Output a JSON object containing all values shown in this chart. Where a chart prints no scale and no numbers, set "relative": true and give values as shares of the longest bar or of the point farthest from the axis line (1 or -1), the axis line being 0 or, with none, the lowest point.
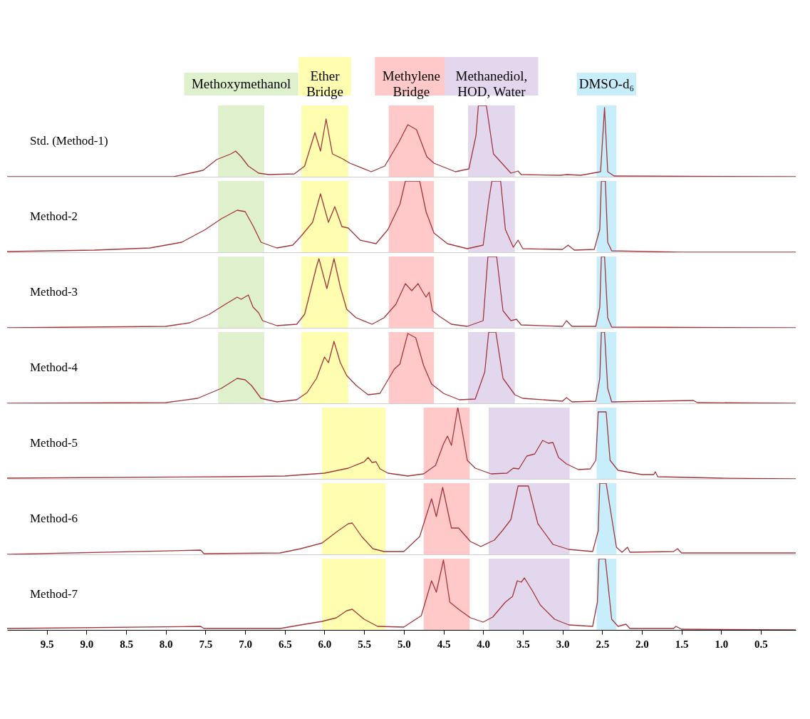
{
  "chart_data": [
    {
      "type": "line",
      "relative": true,
      "tick_labels": false,
      "xlim": [
        10.0,
        0.06
      ],
      "x": [
        10.0,
        7.9,
        7.53,
        7.36,
        7.18,
        7.12,
        7.05,
        6.96,
        6.83,
        6.7,
        6.38,
        6.25,
        6.12,
        6.05,
        5.98,
        5.9,
        5.77,
        5.68,
        5.41,
        5.24,
        5.06,
        4.95,
        4.84,
        4.71,
        4.62,
        4.35,
        4.18,
        4.09,
        4.06,
        3.96,
        3.87,
        3.65,
        3.56,
        3.52,
        3.03,
        2.94,
        2.77,
        2.52,
        2.47,
        2.43,
        2.35,
        0.06
      ],
      "series": [
        {
          "name": "Std. (Method-1)",
          "color": "#a3363c",
          "values": [
            0,
            0,
            0.09,
            0.24,
            0.32,
            0.36,
            0.28,
            0.15,
            0.05,
            0.03,
            0.04,
            0.15,
            0.62,
            0.36,
            0.81,
            0.32,
            0.25,
            0.19,
            0.07,
            0.15,
            0.49,
            0.73,
            0.66,
            0.28,
            0.19,
            0.07,
            0.11,
            0.58,
            1,
            1,
            0.32,
            0.05,
            0.08,
            0.03,
            0.02,
            0.03,
            0.02,
            0.07,
            0.97,
            0.07,
            0.01,
            0
          ]
        }
      ],
      "bands": [
        {
          "axis": "x",
          "from": 7.34,
          "to": 6.76,
          "label": "Methoxymethanol",
          "color": "#dff0cc"
        },
        {
          "axis": "x",
          "from": 6.29,
          "to": 5.7,
          "label": "Ether Bridge",
          "color": "#fffdb0"
        },
        {
          "axis": "x",
          "from": 5.19,
          "to": 4.62,
          "label": "Methylene Bridge",
          "color": "#ffc9c9"
        },
        {
          "axis": "x",
          "from": 4.19,
          "to": 3.6,
          "label": "Methanediol, HOD, Water",
          "color": "#e3d7ee"
        },
        {
          "axis": "x",
          "from": 2.57,
          "to": 2.32,
          "label": "DMSO-d₆",
          "color": "#c9eefb"
        }
      ]
    },
    {
      "type": "line",
      "relative": true,
      "tick_labels": false,
      "xlim": [
        10.0,
        0.06
      ],
      "x": [
        10.0,
        8.9,
        8.2,
        7.8,
        7.5,
        7.3,
        7.1,
        7.0,
        6.9,
        6.8,
        6.6,
        6.4,
        6.3,
        6.15,
        6.05,
        5.95,
        5.87,
        5.78,
        5.7,
        5.55,
        5.35,
        5.2,
        5.05,
        4.98,
        4.8,
        4.72,
        4.62,
        4.45,
        4.2,
        4.0,
        3.93,
        3.89,
        3.78,
        3.72,
        3.62,
        3.56,
        3.5,
        3.0,
        2.93,
        2.85,
        2.6,
        2.53,
        2.51,
        2.46,
        2.43,
        2.38,
        1.5,
        0.06
      ],
      "series": [
        {
          "name": "Method-2",
          "color": "#a3363c",
          "values": [
            0.01,
            0.03,
            0.06,
            0.14,
            0.32,
            0.47,
            0.59,
            0.57,
            0.37,
            0.14,
            0.06,
            0.1,
            0.22,
            0.42,
            0.82,
            0.42,
            0.64,
            0.36,
            0.34,
            0.17,
            0.12,
            0.32,
            0.67,
            1,
            1,
            0.57,
            0.27,
            0.12,
            0.05,
            0.1,
            0.72,
            1,
            1,
            0.32,
            0.07,
            0.17,
            0.05,
            0.04,
            0.1,
            0.03,
            0.04,
            0.32,
            1,
            1,
            0.14,
            0.02,
            0,
            0
          ]
        }
      ],
      "bands": [
        {
          "axis": "x",
          "from": 7.34,
          "to": 6.76,
          "color": "#dff0cc"
        },
        {
          "axis": "x",
          "from": 6.29,
          "to": 5.7,
          "color": "#fffdb0"
        },
        {
          "axis": "x",
          "from": 5.19,
          "to": 4.62,
          "color": "#ffc9c9"
        },
        {
          "axis": "x",
          "from": 4.19,
          "to": 3.6,
          "color": "#e3d7ee"
        },
        {
          "axis": "x",
          "from": 2.57,
          "to": 2.32,
          "color": "#c9eefb"
        }
      ]
    },
    {
      "type": "line",
      "relative": true,
      "tick_labels": false,
      "xlim": [
        10.0,
        0.06
      ],
      "x": [
        10.0,
        8.0,
        7.7,
        7.45,
        7.25,
        7.1,
        7.05,
        6.96,
        6.9,
        6.83,
        6.78,
        6.6,
        6.35,
        6.25,
        6.1,
        6.07,
        5.97,
        5.88,
        5.8,
        5.72,
        5.6,
        5.4,
        5.25,
        5.1,
        4.98,
        4.9,
        4.82,
        4.77,
        4.72,
        4.68,
        4.64,
        4.55,
        4.4,
        4.2,
        4.0,
        3.94,
        3.83,
        3.75,
        3.65,
        3.58,
        3.52,
        3.0,
        2.95,
        2.88,
        2.58,
        2.53,
        2.51,
        2.47,
        2.43,
        2.38,
        0.06
      ],
      "series": [
        {
          "name": "Method-3",
          "color": "#a3363c",
          "values": [
            0,
            0.02,
            0.07,
            0.19,
            0.33,
            0.43,
            0.4,
            0.46,
            0.29,
            0.21,
            0.1,
            0.03,
            0.05,
            0.19,
            0.86,
            0.97,
            0.55,
            0.97,
            0.57,
            0.26,
            0.14,
            0.05,
            0.14,
            0.33,
            0.62,
            0.52,
            0.62,
            0.52,
            0.43,
            0.5,
            0.24,
            0.16,
            0.05,
            0.02,
            0.1,
            1,
            1,
            0.24,
            0.1,
            0.12,
            0.04,
            0.02,
            0.1,
            0.02,
            0.02,
            0.29,
            1,
            1,
            0.14,
            0.01,
            0
          ]
        }
      ],
      "bands": [
        {
          "axis": "x",
          "from": 7.34,
          "to": 6.76,
          "color": "#dff0cc"
        },
        {
          "axis": "x",
          "from": 6.29,
          "to": 5.7,
          "color": "#fffdb0"
        },
        {
          "axis": "x",
          "from": 5.19,
          "to": 4.62,
          "color": "#ffc9c9"
        },
        {
          "axis": "x",
          "from": 4.19,
          "to": 3.6,
          "color": "#e3d7ee"
        },
        {
          "axis": "x",
          "from": 2.57,
          "to": 2.32,
          "color": "#c9eefb"
        }
      ]
    },
    {
      "type": "line",
      "relative": true,
      "tick_labels": false,
      "xlim": [
        10.0,
        0.06
      ],
      "x": [
        10.0,
        8.0,
        7.6,
        7.3,
        7.1,
        7.0,
        6.92,
        6.8,
        6.6,
        6.35,
        6.22,
        6.1,
        6.0,
        5.95,
        5.88,
        5.8,
        5.72,
        5.6,
        5.45,
        5.3,
        5.12,
        5.05,
        4.95,
        4.85,
        4.75,
        4.65,
        4.5,
        4.3,
        4.1,
        3.98,
        3.93,
        3.84,
        3.75,
        3.6,
        3.5,
        3.0,
        2.95,
        2.88,
        2.58,
        2.53,
        2.51,
        2.47,
        2.43,
        2.38,
        1.35,
        1.3,
        0.06
      ],
      "series": [
        {
          "name": "Method-4",
          "color": "#a3363c",
          "values": [
            0,
            0.01,
            0.07,
            0.21,
            0.35,
            0.33,
            0.25,
            0.07,
            0.02,
            0.05,
            0.15,
            0.35,
            0.65,
            0.57,
            0.87,
            0.57,
            0.39,
            0.25,
            0.12,
            0.14,
            0.48,
            0.55,
            0.98,
            0.92,
            0.53,
            0.27,
            0.14,
            0.05,
            0.06,
            0.44,
            1,
            1,
            0.35,
            0.12,
            0.07,
            0.03,
            0.08,
            0.02,
            0.03,
            0.35,
            1,
            1,
            0.21,
            0.02,
            0.04,
            0.01,
            0
          ]
        }
      ],
      "bands": [
        {
          "axis": "x",
          "from": 7.34,
          "to": 6.76,
          "color": "#dff0cc"
        },
        {
          "axis": "x",
          "from": 6.29,
          "to": 5.7,
          "color": "#fffdb0"
        },
        {
          "axis": "x",
          "from": 5.19,
          "to": 4.62,
          "color": "#ffc9c9"
        },
        {
          "axis": "x",
          "from": 4.19,
          "to": 3.6,
          "color": "#e3d7ee"
        },
        {
          "axis": "x",
          "from": 2.57,
          "to": 2.32,
          "color": "#c9eefb"
        }
      ]
    },
    {
      "type": "line",
      "relative": true,
      "tick_labels": false,
      "xlim": [
        10.0,
        0.06
      ],
      "x": [
        10.0,
        7.2,
        6.5,
        6.0,
        5.7,
        5.5,
        5.45,
        5.4,
        5.35,
        5.3,
        5.2,
        4.95,
        4.75,
        4.6,
        4.5,
        4.45,
        4.4,
        4.32,
        4.27,
        4.2,
        4.1,
        3.9,
        3.7,
        3.62,
        3.55,
        3.45,
        3.35,
        3.25,
        3.18,
        3.12,
        3.05,
        2.95,
        2.8,
        2.65,
        2.58,
        2.55,
        2.45,
        2.4,
        2.3,
        2.0,
        1.85,
        1.83,
        1.8,
        1.0,
        0.06
      ],
      "series": [
        {
          "name": "Method-5",
          "color": "#a3363c",
          "values": [
            0.01,
            0.03,
            0.04,
            0.08,
            0.15,
            0.24,
            0.3,
            0.23,
            0.24,
            0.14,
            0.08,
            0.04,
            0.07,
            0.19,
            0.49,
            0.6,
            0.47,
            1,
            0.71,
            0.26,
            0.15,
            0.07,
            0.08,
            0.15,
            0.14,
            0.32,
            0.35,
            0.54,
            0.5,
            0.51,
            0.3,
            0.21,
            0.13,
            0.14,
            0.26,
            0.94,
            0.94,
            0.26,
            0.12,
            0.06,
            0.06,
            0.1,
            0.03,
            0.01,
            0
          ]
        }
      ],
      "bands": [
        {
          "axis": "x",
          "from": 6.03,
          "to": 5.23,
          "color": "#fffdb0"
        },
        {
          "axis": "x",
          "from": 4.75,
          "to": 4.17,
          "color": "#ffc9c9"
        },
        {
          "axis": "x",
          "from": 3.93,
          "to": 2.91,
          "color": "#e3d7ee"
        },
        {
          "axis": "x",
          "from": 2.57,
          "to": 2.32,
          "color": "#c9eefb"
        }
      ]
    },
    {
      "type": "line",
      "relative": true,
      "tick_labels": false,
      "xlim": [
        10.0,
        0.06
      ],
      "x": [
        10.0,
        7.56,
        7.52,
        6.56,
        6.3,
        6.03,
        5.83,
        5.7,
        5.65,
        5.53,
        5.39,
        5.25,
        5.0,
        4.8,
        4.65,
        4.59,
        4.51,
        4.4,
        4.31,
        4.16,
        4.03,
        3.9,
        3.86,
        3.76,
        3.65,
        3.56,
        3.43,
        3.31,
        3.12,
        2.92,
        2.62,
        2.55,
        2.53,
        2.45,
        2.32,
        2.25,
        2.18,
        2.15,
        1.6,
        1.55,
        1.5,
        0.06
      ],
      "series": [
        {
          "name": "Method-6",
          "color": "#a3363c",
          "values": [
            0,
            0.06,
            0.01,
            0.02,
            0.08,
            0.16,
            0.33,
            0.43,
            0.44,
            0.25,
            0.08,
            0.04,
            0.04,
            0.25,
            0.78,
            0.53,
            0.94,
            0.37,
            0.37,
            0.18,
            0.11,
            0.18,
            0.2,
            0.33,
            0.49,
            0.96,
            0.96,
            0.43,
            0.14,
            0.07,
            0.04,
            0.33,
            1,
            1,
            0.1,
            0.03,
            0.1,
            0.03,
            0.04,
            0.08,
            0.02,
            0.02
          ]
        }
      ],
      "bands": [
        {
          "axis": "x",
          "from": 6.03,
          "to": 5.23,
          "color": "#fffdb0"
        },
        {
          "axis": "x",
          "from": 4.75,
          "to": 4.17,
          "color": "#ffc9c9"
        },
        {
          "axis": "x",
          "from": 3.93,
          "to": 2.91,
          "color": "#e3d7ee"
        },
        {
          "axis": "x",
          "from": 2.57,
          "to": 2.32,
          "color": "#c9eefb"
        }
      ]
    },
    {
      "type": "line",
      "relative": true,
      "tick_labels": "x",
      "xlim": [
        10.0,
        0.06
      ],
      "xticks": [
        9.5,
        {
          "value": 9,
          "label": "9.0"
        },
        8.5,
        {
          "value": 8,
          "label": "8.0"
        },
        7.5,
        {
          "value": 7,
          "label": "7.0"
        },
        6.5,
        {
          "value": 6,
          "label": "6.0"
        },
        5.5,
        {
          "value": 5,
          "label": "5.0"
        },
        4.5,
        {
          "value": 4,
          "label": "4.0"
        },
        3.5,
        {
          "value": 3,
          "label": "3.0"
        },
        2.5,
        {
          "value": 2,
          "label": "2.0"
        },
        1.5,
        {
          "value": 1,
          "label": "1.0"
        },
        0.5
      ],
      "x": [
        10.0,
        7.56,
        7.52,
        6.56,
        6.3,
        6.03,
        5.85,
        5.72,
        5.65,
        5.5,
        5.33,
        5.0,
        4.78,
        4.65,
        4.59,
        4.5,
        4.42,
        4.31,
        4.16,
        4.0,
        3.88,
        3.72,
        3.63,
        3.57,
        3.52,
        3.48,
        3.38,
        3.28,
        3.1,
        2.92,
        2.62,
        2.56,
        2.54,
        2.46,
        2.38,
        2.3,
        2.2,
        2.15,
        1.6,
        1.57,
        1.5,
        0.06
      ],
      "series": [
        {
          "name": "Method-7",
          "color": "#a3363c",
          "values": [
            0.02,
            0.05,
            0.02,
            0.02,
            0.07,
            0.12,
            0.17,
            0.27,
            0.29,
            0.15,
            0.05,
            0.04,
            0.2,
            0.69,
            0.53,
            0.98,
            0.39,
            0.29,
            0.17,
            0.11,
            0.18,
            0.39,
            0.47,
            0.69,
            0.67,
            0.73,
            0.55,
            0.35,
            0.15,
            0.07,
            0.05,
            0.39,
            1,
            1,
            0.15,
            0.05,
            0.08,
            0.02,
            0.02,
            0.05,
            0.01,
            0
          ]
        }
      ],
      "bands": [
        {
          "axis": "x",
          "from": 6.03,
          "to": 5.23,
          "color": "#fffdb0"
        },
        {
          "axis": "x",
          "from": 4.75,
          "to": 4.17,
          "color": "#ffc9c9"
        },
        {
          "axis": "x",
          "from": 3.93,
          "to": 2.91,
          "color": "#e3d7ee"
        },
        {
          "axis": "x",
          "from": 2.57,
          "to": 2.32,
          "color": "#c9eefb"
        }
      ]
    }
  ]
}
